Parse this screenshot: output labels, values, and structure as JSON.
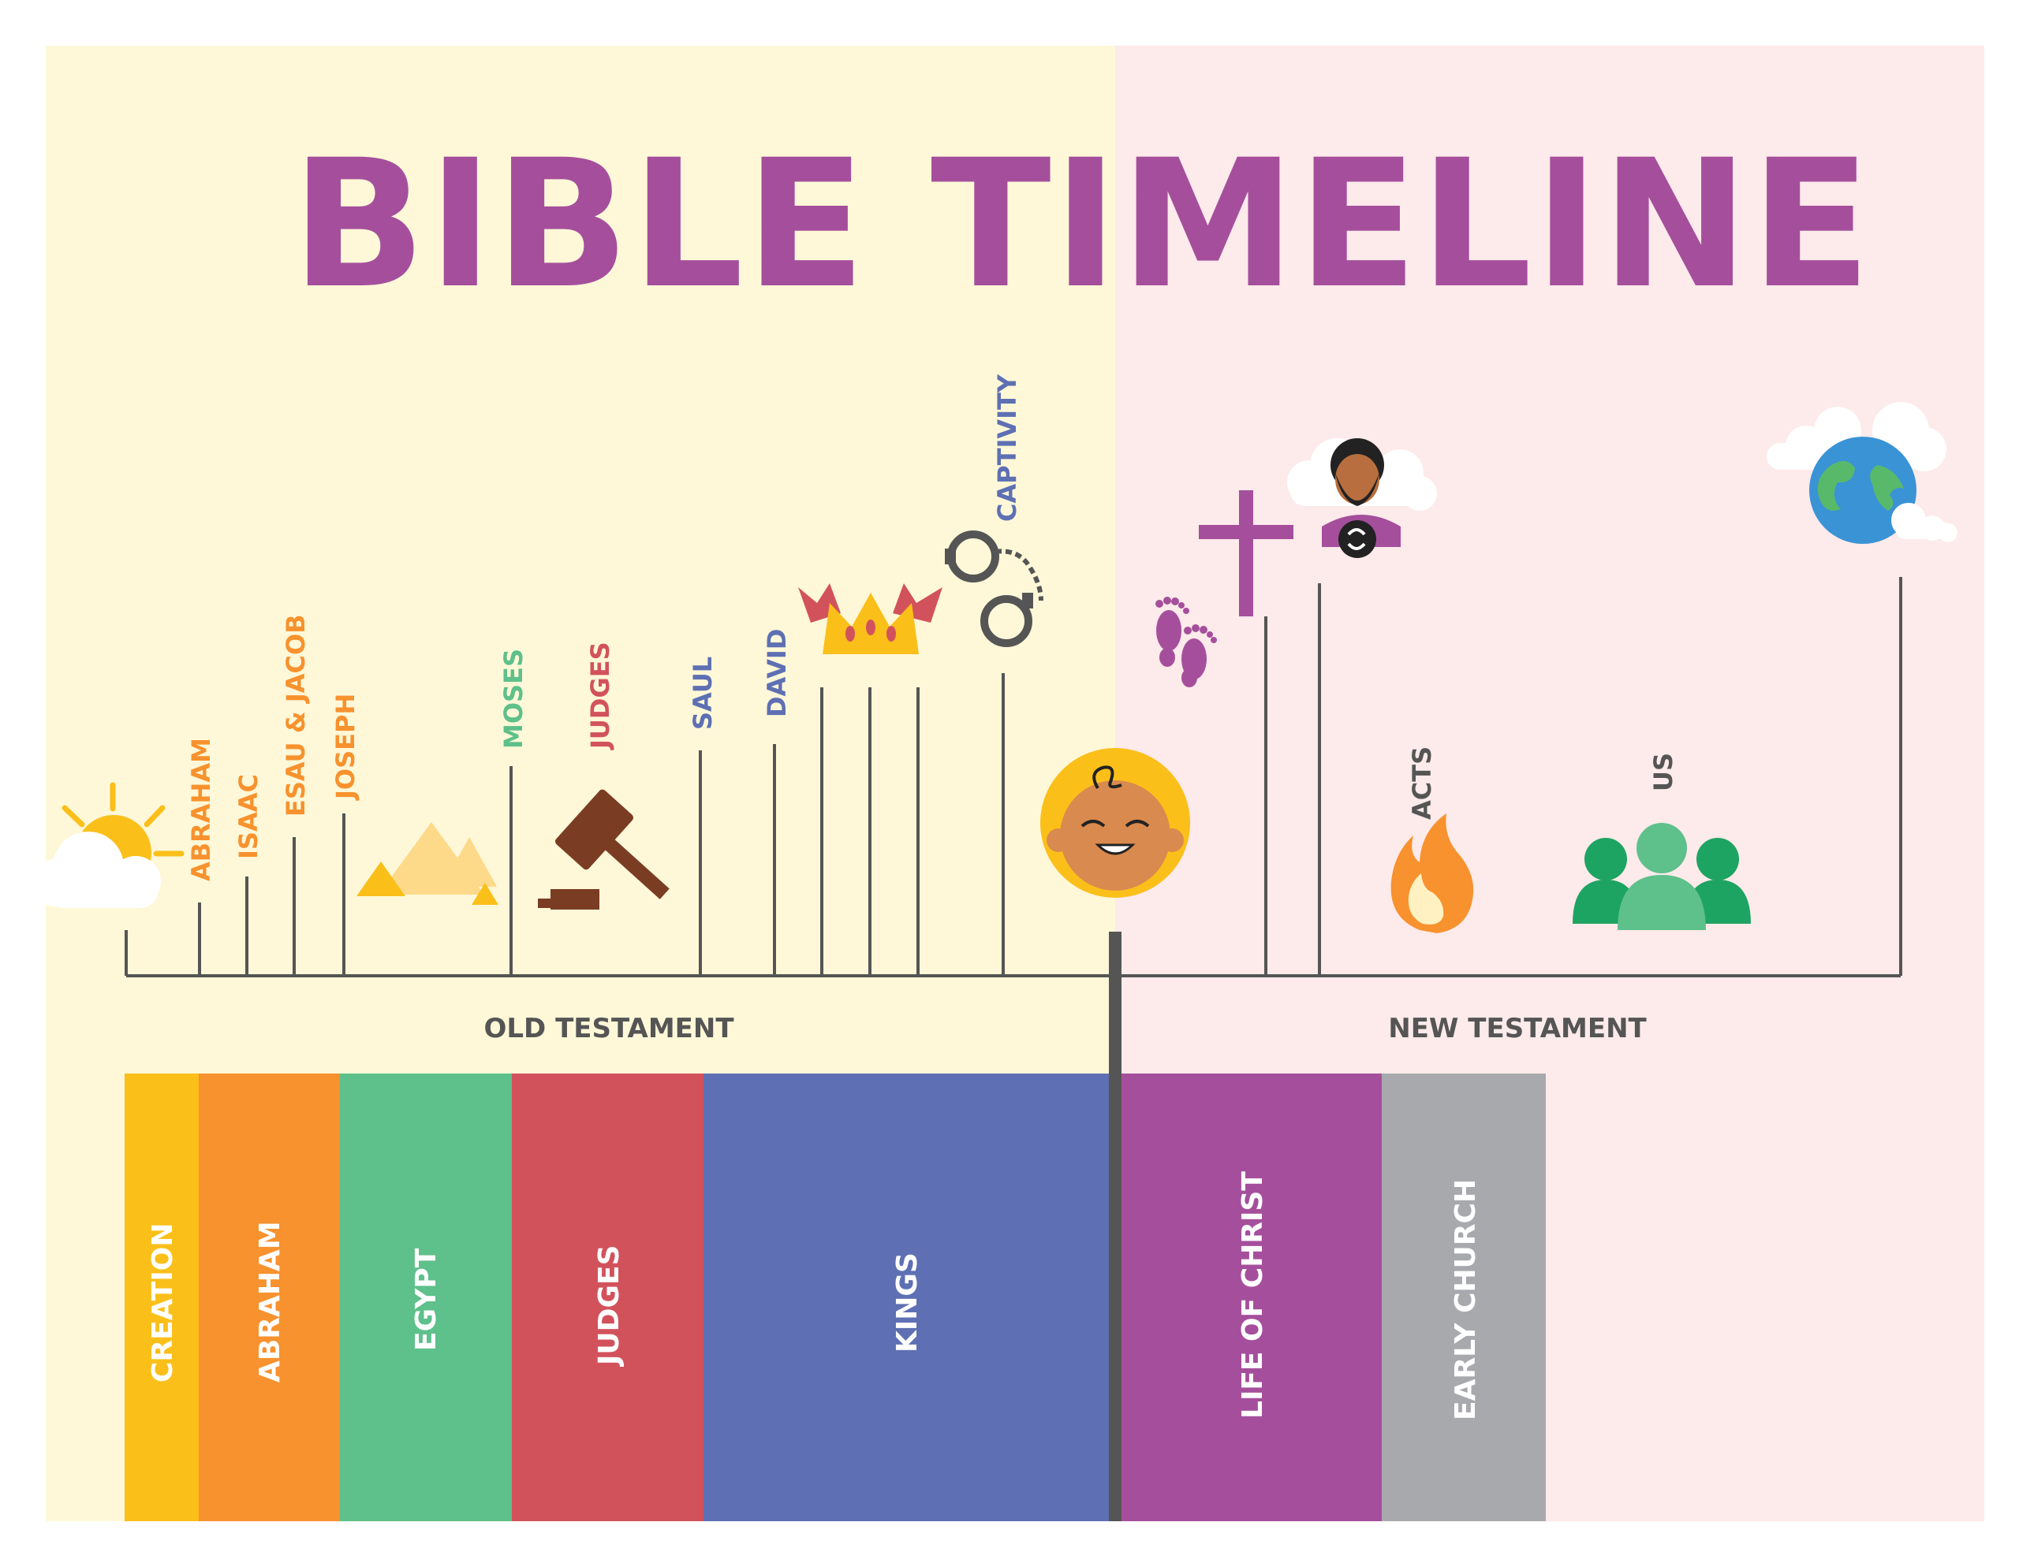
{
  "title": "BIBLE TIMELINE",
  "sections": {
    "old": "OLD TESTAMENT",
    "new": "NEW TESTAMENT"
  },
  "colors": {
    "title": "#a54f9c",
    "old_bg": "#fff8d8",
    "new_bg": "#fdeaea",
    "axis": "#555555",
    "creation": "#fbbf1a",
    "abraham": "#f7922e",
    "egypt": "#5ec08a",
    "judges": "#d2525c",
    "kings": "#5e70b3",
    "christ": "#a54f9c",
    "church": "#a8a9ac",
    "section_text": "#555555"
  },
  "ticks": [
    {
      "label": "ABRAHAM",
      "color": "#f7922e"
    },
    {
      "label": "ISAAC",
      "color": "#f7922e"
    },
    {
      "label": "ESAU & JACOB",
      "color": "#f7922e"
    },
    {
      "label": "JOSEPH",
      "color": "#f7922e"
    },
    {
      "label": "MOSES",
      "color": "#5ec08a"
    },
    {
      "label": "JUDGES",
      "color": "#d2525c"
    },
    {
      "label": "SAUL",
      "color": "#5e70b3"
    },
    {
      "label": "DAVID",
      "color": "#5e70b3"
    },
    {
      "label": "CAPTIVITY",
      "color": "#5e70b3"
    },
    {
      "label": "ACTS",
      "color": "#555555"
    },
    {
      "label": "US",
      "color": "#555555"
    }
  ],
  "eras": [
    {
      "label": "CREATION",
      "color": "#fbbf1a"
    },
    {
      "label": "ABRAHAM",
      "color": "#f7922e"
    },
    {
      "label": "EGYPT",
      "color": "#5ec08a"
    },
    {
      "label": "JUDGES",
      "color": "#d2525c"
    },
    {
      "label": "KINGS",
      "color": "#5e70b3"
    },
    {
      "label": "LIFE OF CHRIST",
      "color": "#a54f9c"
    },
    {
      "label": "EARLY CHURCH",
      "color": "#a8a9ac"
    }
  ],
  "icons": [
    "sun-cloud-icon",
    "pyramids-icon",
    "gavel-icon",
    "crowns-icon",
    "handcuffs-icon",
    "baby-icon",
    "footprints-icon",
    "cross-icon",
    "risen-jesus-icon",
    "fire-icon",
    "people-icon",
    "earth-icon"
  ]
}
